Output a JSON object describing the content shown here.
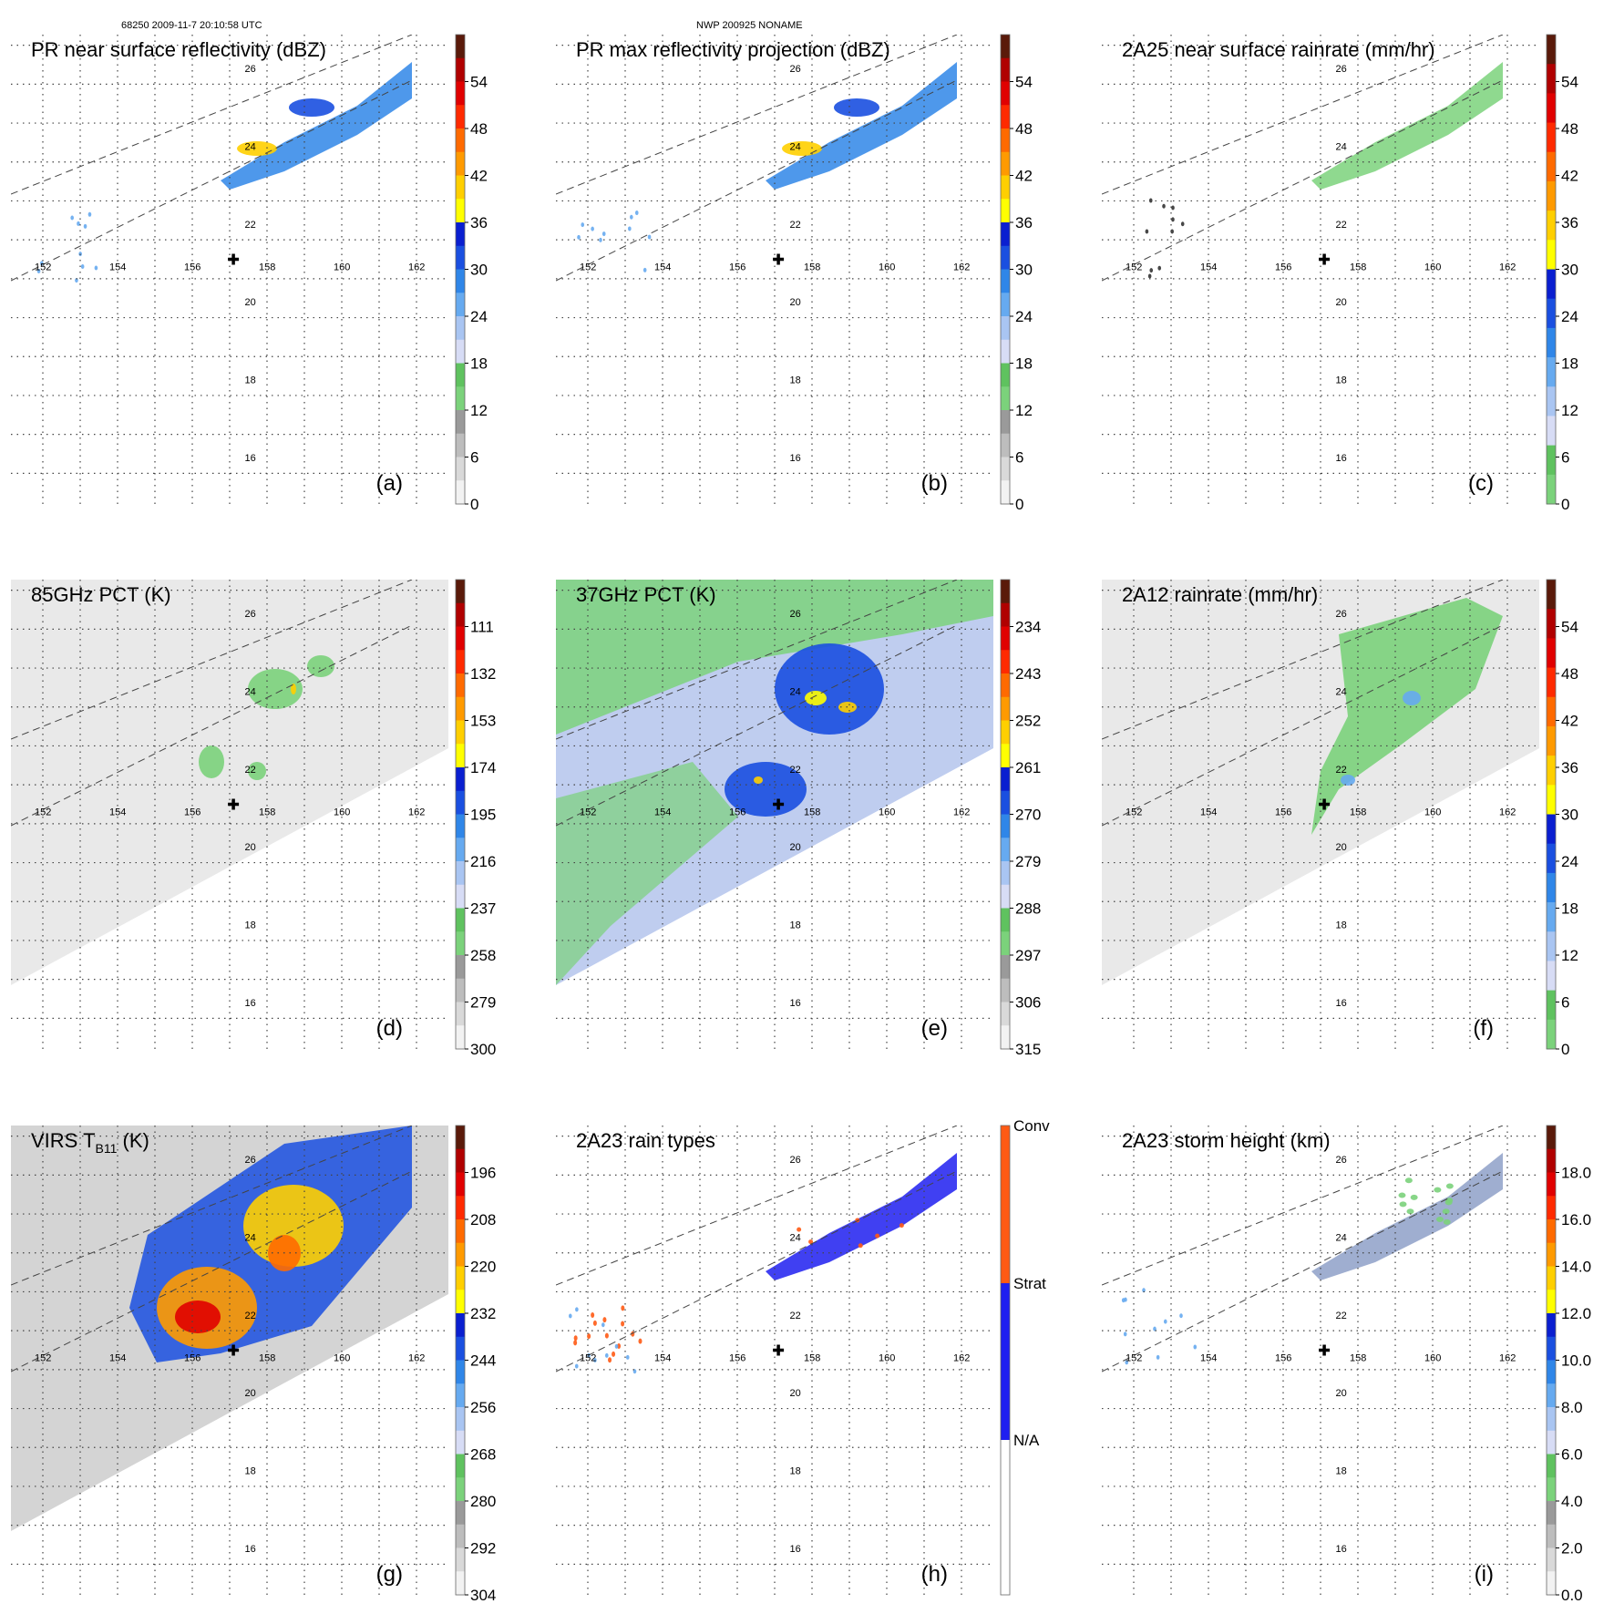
{
  "header": {
    "left": "68250 2009-11-7 20:10:58 UTC",
    "center": "NWP 200925 NONAME"
  },
  "chart_data": [
    {
      "id": "a",
      "type": "heatmap",
      "title": "PR near surface reflectivity (dBZ)",
      "panel_label": "(a)",
      "lon_ticks": [
        "152",
        "154",
        "156",
        "158",
        "160",
        "162"
      ],
      "lat_ticks": [
        "26",
        "24",
        "22",
        "20",
        "18",
        "16"
      ],
      "colorbar": {
        "labels": [
          "54",
          "48",
          "42",
          "36",
          "30",
          "24",
          "18",
          "12",
          "6",
          "0"
        ],
        "range": [
          0,
          60
        ]
      },
      "storm_center": {
        "lon": 157.1,
        "lat": 21.0
      },
      "field": "PR swath"
    },
    {
      "id": "b",
      "type": "heatmap",
      "title": "PR max reflectivity projection (dBZ)",
      "panel_label": "(b)",
      "lon_ticks": [
        "152",
        "154",
        "156",
        "158",
        "160",
        "162"
      ],
      "lat_ticks": [
        "26",
        "24",
        "22",
        "20",
        "18",
        "16"
      ],
      "colorbar": {
        "labels": [
          "54",
          "48",
          "42",
          "36",
          "30",
          "24",
          "18",
          "12",
          "6",
          "0"
        ],
        "range": [
          0,
          60
        ]
      },
      "storm_center": {
        "lon": 157.1,
        "lat": 21.0
      },
      "field": "PR swath"
    },
    {
      "id": "c",
      "type": "heatmap",
      "title": "2A25 near surface rainrate (mm/hr)",
      "panel_label": "(c)",
      "lon_ticks": [
        "152",
        "154",
        "156",
        "158",
        "160",
        "162"
      ],
      "lat_ticks": [
        "26",
        "24",
        "22",
        "20",
        "18",
        "16"
      ],
      "colorbar": {
        "labels": [
          "54",
          "48",
          "42",
          "36",
          "30",
          "24",
          "18",
          "12",
          "6",
          "0"
        ],
        "range": [
          0,
          60
        ]
      },
      "storm_center": {
        "lon": 157.1,
        "lat": 21.0
      },
      "field": "PR swath"
    },
    {
      "id": "d",
      "type": "heatmap",
      "title": "85GHz PCT (K)",
      "panel_label": "(d)",
      "lon_ticks": [
        "152",
        "154",
        "156",
        "158",
        "160",
        "162"
      ],
      "lat_ticks": [
        "26",
        "24",
        "22",
        "20",
        "18",
        "16"
      ],
      "colorbar": {
        "labels": [
          "111",
          "132",
          "153",
          "174",
          "195",
          "216",
          "237",
          "258",
          "279",
          "300"
        ],
        "range": [
          90,
          300
        ]
      },
      "storm_center": {
        "lon": 157.1,
        "lat": 21.0
      },
      "field": "TMI swath"
    },
    {
      "id": "e",
      "type": "heatmap",
      "title": "37GHz PCT (K)",
      "panel_label": "(e)",
      "lon_ticks": [
        "152",
        "154",
        "156",
        "158",
        "160",
        "162"
      ],
      "lat_ticks": [
        "26",
        "24",
        "22",
        "20",
        "18",
        "16"
      ],
      "colorbar": {
        "labels": [
          "234",
          "243",
          "252",
          "261",
          "270",
          "279",
          "288",
          "297",
          "306",
          "315"
        ],
        "range": [
          225,
          315
        ]
      },
      "storm_center": {
        "lon": 157.1,
        "lat": 21.0
      },
      "field": "TMI swath"
    },
    {
      "id": "f",
      "type": "heatmap",
      "title": "2A12 rainrate (mm/hr)",
      "panel_label": "(f)",
      "lon_ticks": [
        "152",
        "154",
        "156",
        "158",
        "160",
        "162"
      ],
      "lat_ticks": [
        "26",
        "24",
        "22",
        "20",
        "18",
        "16"
      ],
      "colorbar": {
        "labels": [
          "54",
          "48",
          "42",
          "36",
          "30",
          "24",
          "18",
          "12",
          "6",
          "0"
        ],
        "range": [
          0,
          60
        ]
      },
      "storm_center": {
        "lon": 157.1,
        "lat": 21.0
      },
      "field": "TMI swath"
    },
    {
      "id": "g",
      "type": "heatmap",
      "title": "VIRS T",
      "title_sub": "B11",
      "title_tail": " (K)",
      "panel_label": "(g)",
      "lon_ticks": [
        "152",
        "154",
        "156",
        "158",
        "160",
        "162"
      ],
      "lat_ticks": [
        "26",
        "24",
        "22",
        "20",
        "18",
        "16"
      ],
      "colorbar": {
        "labels": [
          "196",
          "208",
          "220",
          "232",
          "244",
          "256",
          "268",
          "280",
          "292",
          "304"
        ],
        "range": [
          184,
          304
        ]
      },
      "storm_center": {
        "lon": 157.1,
        "lat": 21.0
      },
      "field": "VIRS swath"
    },
    {
      "id": "h",
      "type": "heatmap",
      "title": "2A23 rain types",
      "panel_label": "(h)",
      "lon_ticks": [
        "152",
        "154",
        "156",
        "158",
        "160",
        "162"
      ],
      "lat_ticks": [
        "26",
        "24",
        "22",
        "20",
        "18",
        "16"
      ],
      "colorbar": {
        "labels": [
          "Conv",
          "Strat",
          "N/A"
        ],
        "categories": [
          "Conv",
          "Strat",
          "N/A"
        ]
      },
      "storm_center": {
        "lon": 157.1,
        "lat": 21.0
      },
      "field": "PR swath"
    },
    {
      "id": "i",
      "type": "heatmap",
      "title": "2A23 storm height (km)",
      "panel_label": "(i)",
      "lon_ticks": [
        "152",
        "154",
        "156",
        "158",
        "160",
        "162"
      ],
      "lat_ticks": [
        "26",
        "24",
        "22",
        "20",
        "18",
        "16"
      ],
      "colorbar": {
        "labels": [
          "18.0",
          "16.0",
          "14.0",
          "12.0",
          "10.0",
          "8.0",
          "6.0",
          "4.0",
          "2.0",
          "0.0"
        ],
        "range": [
          0,
          20
        ]
      },
      "storm_center": {
        "lon": 157.1,
        "lat": 21.0
      },
      "field": "PR swath"
    }
  ],
  "colors": {
    "standard_bar": [
      "#f2f2f2",
      "#d9d9d9",
      "#bdbdbd",
      "#9a9a9a",
      "#7bd27b",
      "#5fc25f",
      "#d7dcf5",
      "#a9c5f2",
      "#66aaf0",
      "#2f86e8",
      "#1a4fe0",
      "#0a1fd0",
      "#ffff00",
      "#ffcf00",
      "#ff9a00",
      "#ff6a00",
      "#ff2a00",
      "#e00000",
      "#b00000",
      "#5a1a0a"
    ],
    "rain_bar": [
      "#7bd27b",
      "#5fc25f",
      "#d7dcf5",
      "#a9c5f2",
      "#66aaf0",
      "#2f86e8",
      "#1a4fe0",
      "#0a1fd0",
      "#ffff00",
      "#ffcf00",
      "#ff9a00",
      "#ff6a00",
      "#ff2a00",
      "#e00000",
      "#b00000",
      "#5a1a0a"
    ],
    "type_bar": [
      "#ffffff",
      "#1f1ff0",
      "#ff5a14"
    ]
  }
}
